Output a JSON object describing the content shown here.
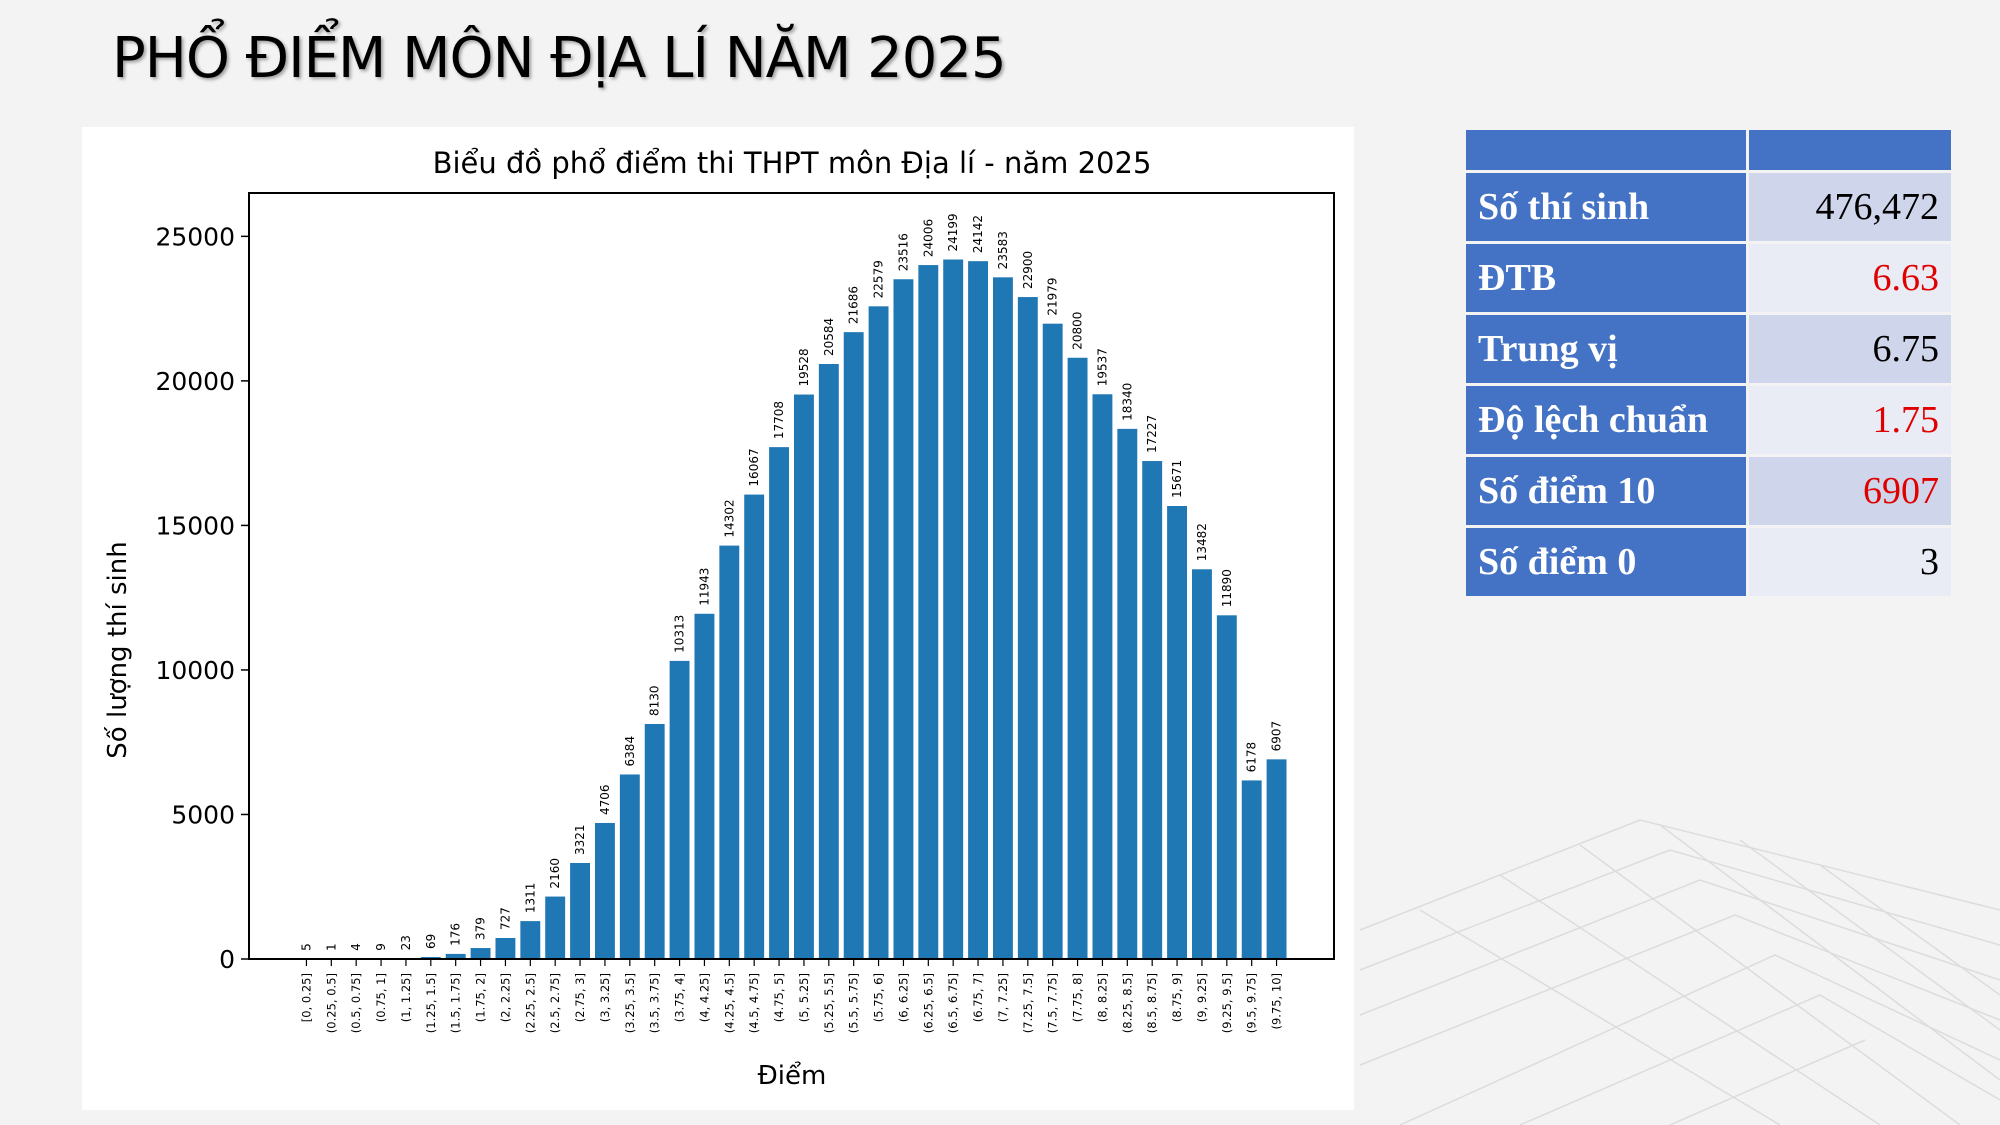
{
  "slide": {
    "title": "PHỔ ĐIỂM MÔN ĐỊA LÍ NĂM 2025"
  },
  "stats": {
    "rows": [
      {
        "label": "Số thí sinh",
        "value": "476,472",
        "highlight": false
      },
      {
        "label": "ĐTB",
        "value": "6.63",
        "highlight": true
      },
      {
        "label": "Trung vị",
        "value": "6.75",
        "highlight": false
      },
      {
        "label": "Độ lệch chuẩn",
        "value": "1.75",
        "highlight": true
      },
      {
        "label": "Số điểm 10",
        "value": "6907",
        "highlight": true
      },
      {
        "label": "Số điểm 0",
        "value": "3",
        "highlight": false
      }
    ],
    "colors": {
      "header": "#4472c4",
      "row_odd": "#cfd5ea",
      "row_even": "#e9ebf5",
      "highlight_text": "#e00000"
    }
  },
  "chart_data": {
    "type": "bar",
    "title": "Biểu đồ phổ điểm thi THPT môn Địa lí - năm 2025",
    "xlabel": "Điểm",
    "ylabel": "Số lượng thí sinh",
    "ylim": [
      0,
      26500
    ],
    "yticks": [
      0,
      5000,
      10000,
      15000,
      20000,
      25000
    ],
    "grid": false,
    "bar_color": "#1f77b4",
    "categories": [
      "[0, 0.25]",
      "(0.25, 0.5]",
      "(0.5, 0.75]",
      "(0.75, 1]",
      "(1, 1.25]",
      "(1.25, 1.5]",
      "(1.5, 1.75]",
      "(1.75, 2]",
      "(2, 2.25]",
      "(2.25, 2.5]",
      "(2.5, 2.75]",
      "(2.75, 3]",
      "(3, 3.25]",
      "(3.25, 3.5]",
      "(3.5, 3.75]",
      "(3.75, 4]",
      "(4, 4.25]",
      "(4.25, 4.5]",
      "(4.5, 4.75]",
      "(4.75, 5]",
      "(5, 5.25]",
      "(5.25, 5.5]",
      "(5.5, 5.75]",
      "(5.75, 6]",
      "(6, 6.25]",
      "(6.25, 6.5]",
      "(6.5, 6.75]",
      "(6.75, 7]",
      "(7, 7.25]",
      "(7.25, 7.5]",
      "(7.5, 7.75]",
      "(7.75, 8]",
      "(8, 8.25]",
      "(8.25, 8.5]",
      "(8.5, 8.75]",
      "(8.75, 9]",
      "(9, 9.25]",
      "(9.25, 9.5]",
      "(9.5, 9.75]",
      "(9.75, 10]"
    ],
    "values": [
      5,
      1,
      4,
      9,
      23,
      69,
      176,
      379,
      727,
      1311,
      2160,
      3321,
      4706,
      6384,
      8130,
      10313,
      11943,
      14302,
      16067,
      17708,
      19528,
      20584,
      21686,
      22579,
      23516,
      24006,
      24199,
      24142,
      23583,
      22900,
      21979,
      20800,
      19537,
      18340,
      17227,
      15671,
      13482,
      11890,
      6178,
      6907
    ]
  }
}
